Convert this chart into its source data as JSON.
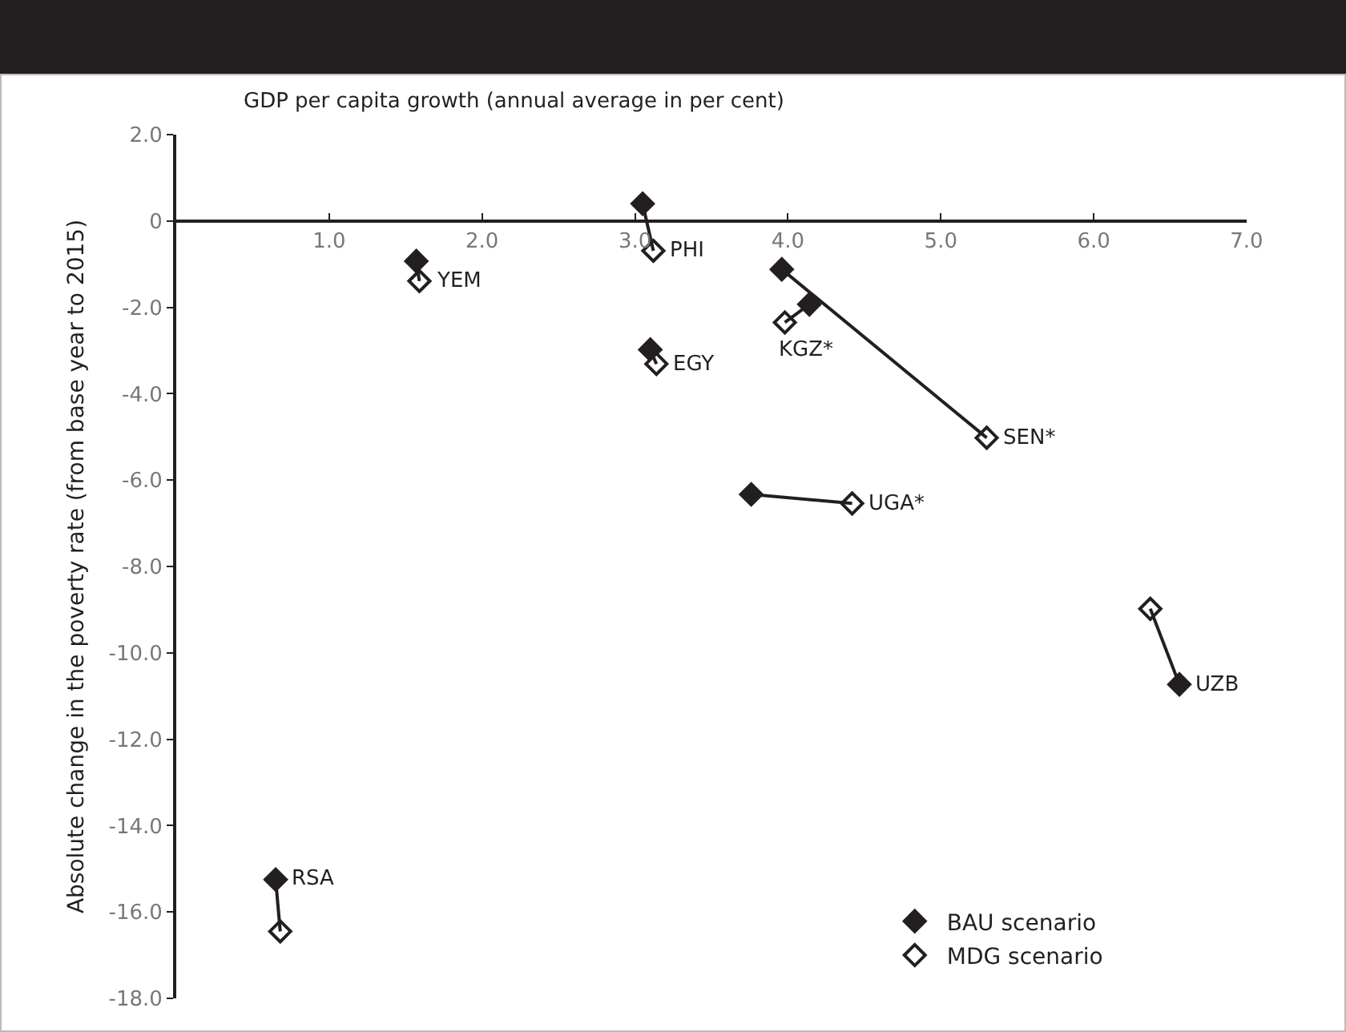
{
  "chart_data": {
    "type": "scatter",
    "xlabel": "GDP per capita growth (annual average in per cent)",
    "ylabel": "Absolute change in the poverty rate (from base year to 2015)",
    "xlim": [
      0,
      7
    ],
    "xticks": [
      {
        "value": 1,
        "label": "1.0"
      },
      {
        "value": 2,
        "label": "2.0"
      },
      {
        "value": 3,
        "label": "3.0"
      },
      {
        "value": 4,
        "label": "4.0"
      },
      {
        "value": 5,
        "label": "5.0"
      },
      {
        "value": 6,
        "label": "6.0"
      },
      {
        "value": 7,
        "label": "7.0"
      }
    ],
    "ylim": [
      -18,
      2
    ],
    "yticks": [
      {
        "value": 2,
        "label": "2.0"
      },
      0,
      {
        "value": -2,
        "label": "-2.0"
      },
      {
        "value": -4,
        "label": "-4.0"
      },
      {
        "value": -6,
        "label": "-6.0"
      },
      {
        "value": -8,
        "label": "-8.0"
      },
      {
        "value": -10,
        "label": "-10.0"
      },
      {
        "value": -12,
        "label": "-12.0"
      },
      {
        "value": -14,
        "label": "-14.0"
      },
      {
        "value": -16,
        "label": "-16.0"
      },
      {
        "value": -18,
        "label": "-18.0"
      }
    ],
    "grid": false,
    "legend": "bottom right",
    "series": [
      {
        "type": "line",
        "color": "#231f20",
        "marker": "none",
        "x": [
          0.65,
          0.68
        ],
        "values": [
          -15.25,
          -16.45
        ]
      },
      {
        "type": "line",
        "color": "#231f20",
        "marker": "none",
        "x": [
          1.57,
          1.59
        ],
        "values": [
          -0.93,
          -1.39
        ]
      },
      {
        "type": "line",
        "color": "#231f20",
        "marker": "none",
        "x": [
          3.05,
          3.12
        ],
        "values": [
          0.4,
          -0.69
        ]
      },
      {
        "type": "line",
        "color": "#231f20",
        "marker": "none",
        "x": [
          3.1,
          3.14
        ],
        "values": [
          -2.98,
          -3.31
        ]
      },
      {
        "type": "line",
        "color": "#231f20",
        "marker": "none",
        "x": [
          3.76,
          4.42
        ],
        "values": [
          -6.33,
          -6.54
        ]
      },
      {
        "type": "line",
        "color": "#231f20",
        "marker": "none",
        "x": [
          3.96,
          5.3
        ],
        "values": [
          -1.12,
          -5.02
        ]
      },
      {
        "type": "line",
        "color": "#231f20",
        "marker": "none",
        "x": [
          4.14,
          3.98
        ],
        "values": [
          -1.93,
          -2.35
        ]
      },
      {
        "type": "line",
        "color": "#231f20",
        "marker": "none",
        "x": [
          6.56,
          6.37
        ],
        "values": [
          -10.73,
          -8.98
        ]
      },
      {
        "name": "BAU scenario",
        "color": "#231f20",
        "marker": "diamond",
        "x": [
          0.65,
          1.57,
          3.05,
          3.1,
          3.76,
          3.96,
          4.14,
          6.56
        ],
        "values": [
          -15.25,
          -0.93,
          0.4,
          -2.98,
          -6.33,
          -1.12,
          -1.93,
          -10.73
        ]
      },
      {
        "name": "MDG scenario",
        "color": "#ffffff",
        "marker": "diamond",
        "x": [
          0.68,
          1.59,
          3.12,
          3.14,
          4.42,
          5.3,
          3.98,
          6.37
        ],
        "values": [
          -16.45,
          -1.39,
          -0.69,
          -3.31,
          -6.54,
          -5.02,
          -2.35,
          -8.98
        ]
      }
    ],
    "annotations": [
      {
        "text": "RSA",
        "x": 0.65,
        "y": -15.25
      },
      {
        "text": "YEM",
        "x": 1.59,
        "y": -1.39
      },
      {
        "text": "PHI",
        "x": 3.12,
        "y": -0.69
      },
      {
        "text": "EGY",
        "x": 3.14,
        "y": -3.31
      },
      {
        "text": "UGA*",
        "x": 4.42,
        "y": -6.54
      },
      {
        "text": "SEN*",
        "x": 5.3,
        "y": -5.02
      },
      {
        "text": "KGZ*",
        "x": 3.98,
        "y": -2.35
      },
      {
        "text": "UZB",
        "x": 6.56,
        "y": -10.73
      }
    ]
  }
}
